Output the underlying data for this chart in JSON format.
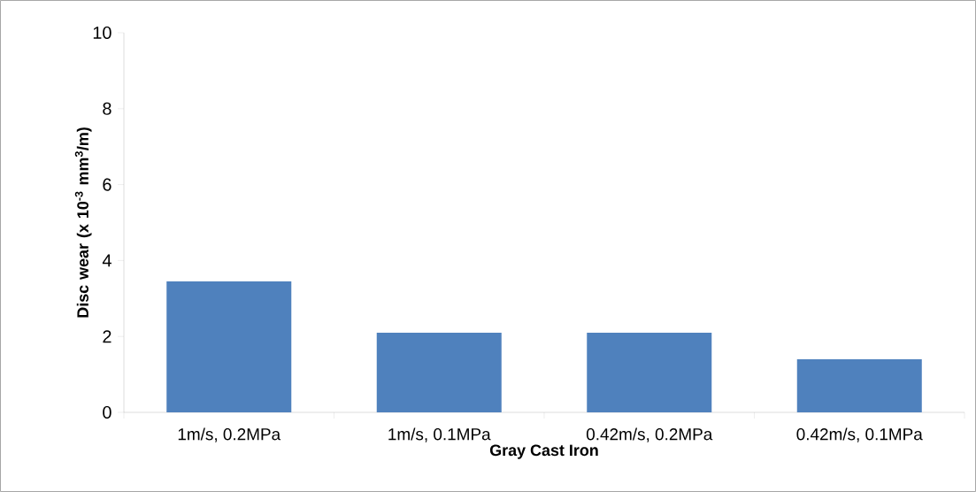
{
  "chart_data": {
    "type": "bar",
    "xlabel": "Gray Cast Iron",
    "ylabel": "Disc wear (x 10$^{-3}$ mm$^{3}$/m)",
    "categories": [
      "1m/s, 0.2MPa",
      "1m/s, 0.1MPa",
      "0.42m/s, 0.2MPa",
      "0.42m/s, 0.1MPa"
    ],
    "values": [
      3.45,
      2.1,
      2.1,
      1.4
    ],
    "color": "#4f81bd",
    "ylim": [
      0,
      10
    ],
    "yticks": [
      0,
      2,
      4,
      6,
      8,
      10
    ]
  }
}
